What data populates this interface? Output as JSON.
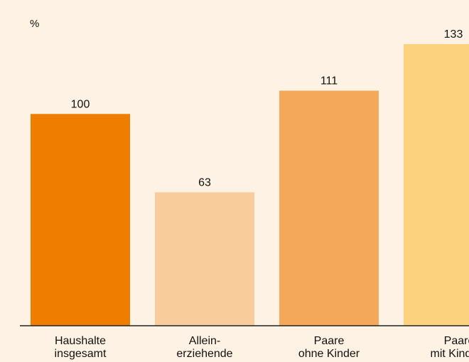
{
  "chart_data": {
    "type": "bar",
    "unit_label": "%",
    "categories": [
      [
        "Haushalte",
        "insgesamt"
      ],
      [
        "Allein-",
        "erziehende"
      ],
      [
        "Paare",
        "ohne Kinder"
      ],
      [
        "Paare",
        "mit Kindern"
      ]
    ],
    "values": [
      100,
      63,
      111,
      133
    ],
    "data_labels": [
      "100",
      "63",
      "111",
      "133"
    ],
    "colors": [
      "#ef7d00",
      "#f9cc9c",
      "#f4a859",
      "#fdd27e"
    ],
    "background": "#fdf2e3",
    "ylim": [
      0,
      150
    ],
    "grid": false,
    "legend": "none"
  }
}
